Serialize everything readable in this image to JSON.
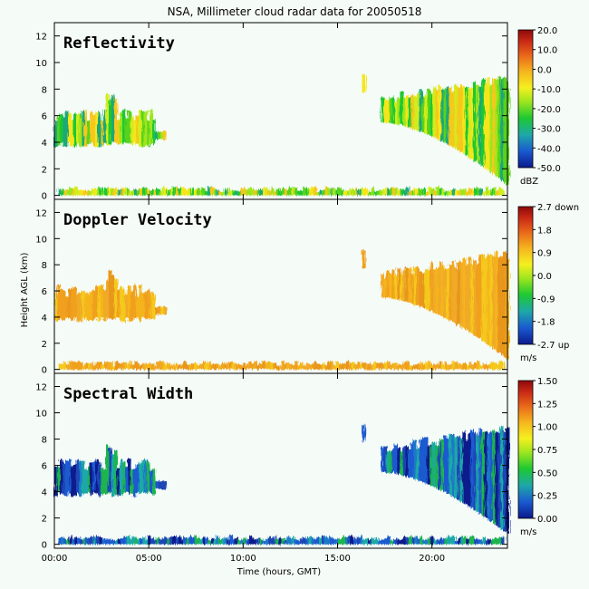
{
  "chart_data": {
    "type": "heatmap",
    "title": "NSA, Millimeter cloud radar data for 20050518",
    "xlabel": "Time (hours, GMT)",
    "ylabel": "Height AGL (km)",
    "xlim": [
      0,
      24
    ],
    "ylim": [
      -0.3,
      13
    ],
    "x_ticks": [
      "00:00",
      "05:00",
      "10:00",
      "15:00",
      "20:00"
    ],
    "x_tick_values": [
      0,
      5,
      10,
      15,
      20
    ],
    "y_ticks": [
      "0",
      "2",
      "4",
      "6",
      "8",
      "10",
      "12"
    ],
    "y_tick_values": [
      0,
      2,
      4,
      6,
      8,
      10,
      12
    ],
    "cloud_regions": [
      {
        "name": "surface clutter",
        "t_start": 0.2,
        "t_end": 23.8,
        "base_km": 0.0,
        "top_km": 0.6
      },
      {
        "name": "cloud layer 1",
        "t_start": 0.0,
        "t_end": 5.8,
        "base_km": 3.6,
        "top_km": 7.5
      },
      {
        "name": "isolated echo",
        "t_start": 16.3,
        "t_end": 16.4,
        "base_km": 7.7,
        "top_km": 9.1
      },
      {
        "name": "cloud layer 2",
        "t_start": 17.3,
        "t_end": 24.0,
        "base_km": 0.5,
        "top_km": 9.0
      }
    ],
    "panels": [
      {
        "title": "Reflectivity",
        "unit": "dBZ",
        "colorbar_ticks": [
          "20.0",
          "10.0",
          "0.0",
          "-10.0",
          "-20.0",
          "-30.0",
          "-40.0",
          "-50.0"
        ],
        "range": [
          -50,
          20
        ]
      },
      {
        "title": "Doppler Velocity",
        "unit": "m/s",
        "colorbar_ticks": [
          "2.7 down",
          "1.8",
          "0.9",
          "0.0",
          "-0.9",
          "-1.8",
          "-2.7 up"
        ],
        "range": [
          -2.7,
          2.7
        ]
      },
      {
        "title": "Spectral Width",
        "unit": "m/s",
        "colorbar_ticks": [
          "1.50",
          "1.25",
          "1.00",
          "0.75",
          "0.50",
          "0.25",
          "0.00"
        ],
        "range": [
          0,
          1.5
        ]
      }
    ]
  }
}
